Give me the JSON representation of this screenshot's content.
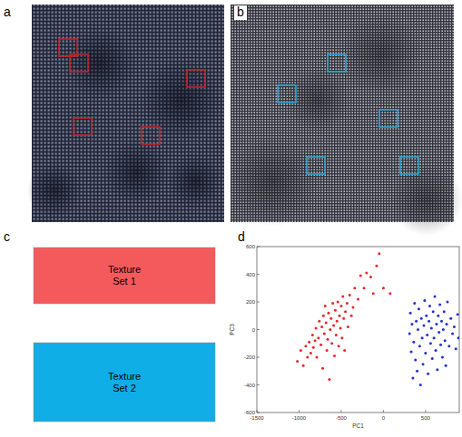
{
  "panels": {
    "labels": [
      "a",
      "b",
      "c",
      "d"
    ]
  },
  "legend_boxes": [
    {
      "label": "Texture Set 1",
      "color": "#f45a5c"
    },
    {
      "label": "Texture Set 2",
      "color": "#10aee6"
    }
  ],
  "chart_data": {
    "type": "scatter",
    "x_label": "PC1",
    "y_label": "PC3",
    "xlim": [
      -1500,
      900
    ],
    "xticks": [
      -1500,
      -1000,
      -500,
      0,
      500
    ],
    "ylim": [
      -600,
      600
    ],
    "yticks": [
      -600,
      -400,
      -200,
      0,
      200,
      400,
      600
    ],
    "series": [
      {
        "color": "#e8262a",
        "marker": "dot",
        "x": [
          -1020,
          -980,
          -950,
          -920,
          -900,
          -880,
          -860,
          -840,
          -830,
          -810,
          -800,
          -790,
          -770,
          -760,
          -740,
          -730,
          -720,
          -710,
          -700,
          -690,
          -680,
          -670,
          -660,
          -650,
          -640,
          -630,
          -620,
          -610,
          -600,
          -590,
          -580,
          -570,
          -560,
          -550,
          -540,
          -530,
          -520,
          -510,
          -500,
          -490,
          -480,
          -470,
          -460,
          -450,
          -430,
          -420,
          -400,
          -380,
          -360,
          -340,
          -300,
          -270,
          -230,
          -200,
          -150,
          -80,
          -50,
          0,
          80,
          -120
        ],
        "values": [
          -230,
          -150,
          -260,
          -120,
          -200,
          -90,
          -170,
          -40,
          -130,
          -80,
          10,
          -200,
          -60,
          60,
          -110,
          20,
          -280,
          100,
          -30,
          170,
          50,
          -150,
          -70,
          120,
          -360,
          0,
          80,
          -100,
          190,
          30,
          -190,
          140,
          -40,
          60,
          200,
          -120,
          100,
          10,
          170,
          -60,
          240,
          80,
          -150,
          130,
          190,
          20,
          250,
          100,
          160,
          300,
          220,
          390,
          300,
          410,
          380,
          460,
          550,
          300,
          260,
          260
        ]
      },
      {
        "color": "#2231c8",
        "marker": "dot",
        "x": [
          310,
          320,
          330,
          340,
          350,
          360,
          370,
          380,
          390,
          400,
          410,
          420,
          430,
          440,
          450,
          460,
          470,
          480,
          490,
          500,
          510,
          520,
          530,
          540,
          550,
          560,
          570,
          580,
          590,
          600,
          610,
          620,
          630,
          640,
          650,
          660,
          670,
          680,
          690,
          700,
          710,
          720,
          730,
          740,
          750,
          760,
          780,
          800,
          820,
          840,
          860,
          880,
          890
        ],
        "values": [
          -30,
          120,
          -160,
          40,
          -350,
          -90,
          190,
          -220,
          60,
          -300,
          0,
          150,
          -120,
          -400,
          80,
          -60,
          -250,
          30,
          210,
          -170,
          100,
          -40,
          -320,
          60,
          170,
          -100,
          10,
          -210,
          130,
          -60,
          240,
          -150,
          40,
          -290,
          100,
          -20,
          180,
          -110,
          60,
          -200,
          0,
          130,
          -80,
          -260,
          40,
          200,
          -120,
          80,
          -30,
          20,
          -140,
          110,
          -60
        ]
      }
    ]
  }
}
